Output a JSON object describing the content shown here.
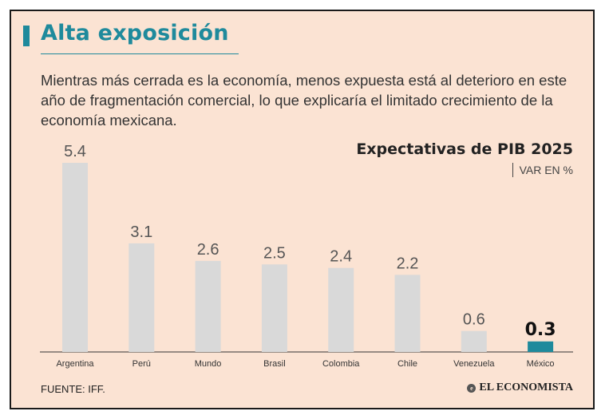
{
  "header": {
    "title": "Alta exposición",
    "description": "Mientras más cerrada es la economía, menos expuesta está al deterioro en este año de fragmentación comercial, lo que explicaría el limitado crecimiento de la economía mexicana."
  },
  "chart_data": {
    "type": "bar",
    "title": "Expectativas de PIB 2025",
    "subtitle": "VAR EN %",
    "categories": [
      "Argentina",
      "Perú",
      "Mundo",
      "Brasil",
      "Colombia",
      "Chile",
      "Venezuela",
      "México"
    ],
    "values": [
      5.4,
      3.1,
      2.6,
      2.5,
      2.4,
      2.2,
      0.6,
      0.3
    ],
    "value_labels": [
      "5.4",
      "3.1",
      "2.6",
      "2.5",
      "2.4",
      "2.2",
      "0.6",
      "0.3"
    ],
    "highlight": "México",
    "ylim": [
      0,
      5.4
    ],
    "colors": {
      "bar": "#d9d9d9",
      "highlight": "#1f8a9c"
    }
  },
  "footer": {
    "source": "FUENTE: IFF.",
    "brand": "EL ECONOMISTA",
    "brand_icon": "e-logo-icon"
  }
}
